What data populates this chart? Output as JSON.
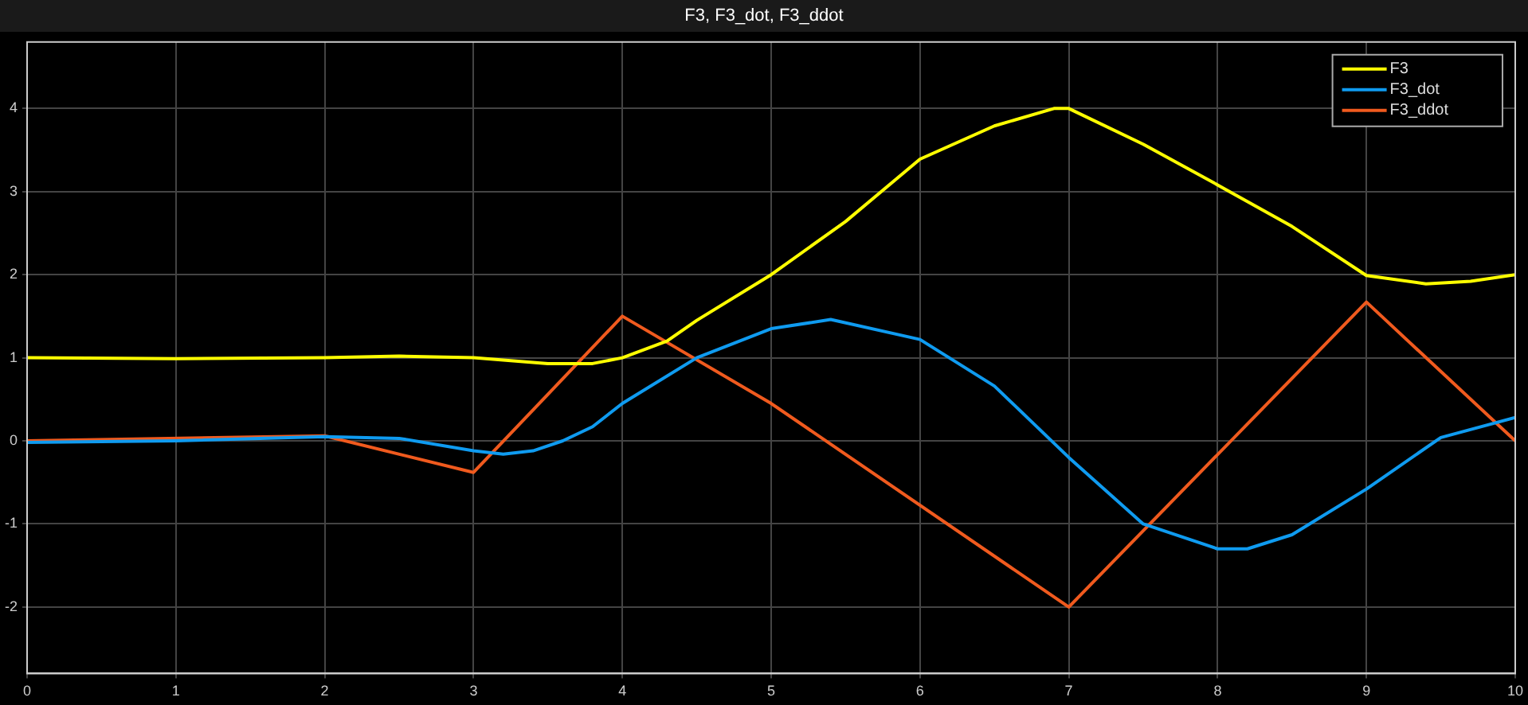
{
  "chart_data": {
    "type": "line",
    "title": "F3, F3_dot, F3_ddot",
    "xlim": [
      0,
      10
    ],
    "xticks": [
      0,
      1,
      2,
      3,
      4,
      5,
      6,
      7,
      8,
      9,
      10
    ],
    "ylim": [
      -2.8,
      4.8
    ],
    "yticks": [
      -2,
      -1,
      0,
      1,
      2,
      3,
      4
    ],
    "grid": true,
    "legend": "top right",
    "marker": "none",
    "line_style": "solid",
    "series": [
      {
        "name": "F3",
        "color": "#ffff00",
        "x": [
          0,
          1,
          2,
          2.5,
          3,
          3.5,
          3.8,
          4,
          4.3,
          4.5,
          5,
          5.5,
          6,
          6.5,
          6.9,
          7,
          7.5,
          8,
          8.5,
          9,
          9.4,
          9.7,
          10
        ],
        "values": [
          1.0,
          0.99,
          1.0,
          1.02,
          1.0,
          0.93,
          0.93,
          1.0,
          1.2,
          1.45,
          2.0,
          2.64,
          3.39,
          3.79,
          4.0,
          4.0,
          3.57,
          3.08,
          2.58,
          1.99,
          1.89,
          1.92,
          2.0
        ]
      },
      {
        "name": "F3_dot",
        "color": "#0f9bf0",
        "x": [
          0,
          1,
          2,
          2.5,
          3,
          3.2,
          3.4,
          3.6,
          3.8,
          4,
          4.5,
          5,
          5.4,
          6,
          6.5,
          7,
          7.5,
          8,
          8.2,
          8.5,
          9,
          9.5,
          10
        ],
        "values": [
          -0.02,
          0.0,
          0.05,
          0.03,
          -0.12,
          -0.16,
          -0.12,
          0.0,
          0.17,
          0.45,
          1.0,
          1.35,
          1.46,
          1.22,
          0.66,
          -0.2,
          -1.0,
          -1.3,
          -1.3,
          -1.13,
          -0.58,
          0.04,
          0.28
        ]
      },
      {
        "name": "F3_ddot",
        "color": "#f05a1e",
        "x": [
          0,
          2,
          3,
          4,
          5,
          7,
          9,
          10
        ],
        "values": [
          0.0,
          0.06,
          -0.38,
          1.5,
          0.45,
          -2.0,
          1.67,
          0.0
        ]
      }
    ]
  }
}
